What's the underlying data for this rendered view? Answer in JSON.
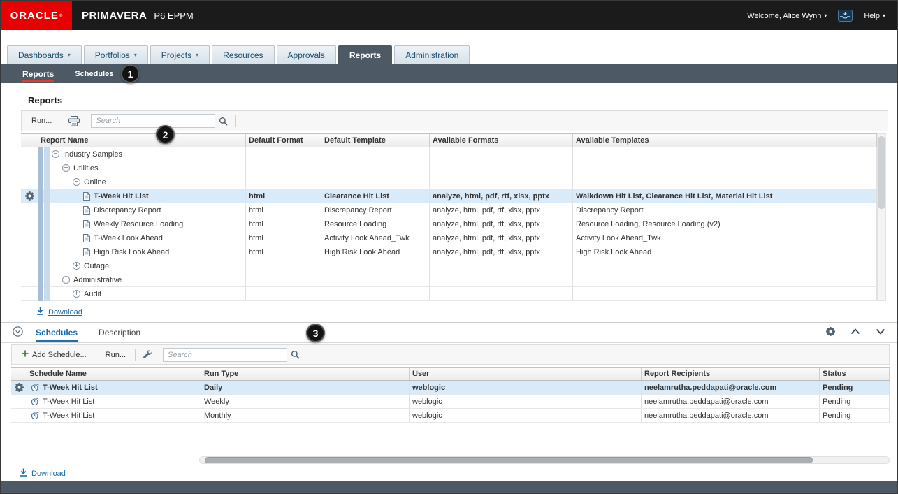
{
  "header": {
    "logo": "ORACLE",
    "logo_mark": "®",
    "brand": "PRIMAVERA",
    "product": "P6 EPPM",
    "welcome": "Welcome, Alice Wynn",
    "help": "Help"
  },
  "nav": {
    "tabs": [
      {
        "label": "Dashboards",
        "dropdown": true,
        "active": false
      },
      {
        "label": "Portfolios",
        "dropdown": true,
        "active": false
      },
      {
        "label": "Projects",
        "dropdown": true,
        "active": false
      },
      {
        "label": "Resources",
        "dropdown": false,
        "active": false
      },
      {
        "label": "Approvals",
        "dropdown": false,
        "active": false
      },
      {
        "label": "Reports",
        "dropdown": false,
        "active": true
      },
      {
        "label": "Administration",
        "dropdown": false,
        "active": false
      }
    ],
    "subnav": [
      {
        "label": "Reports",
        "active": true
      },
      {
        "label": "Schedules",
        "active": false
      }
    ]
  },
  "reports": {
    "title": "Reports",
    "toolbar": {
      "run": "Run...",
      "search_placeholder": "Search"
    },
    "columns": [
      "Report Name",
      "Default Format",
      "Default Template",
      "Available Formats",
      "Available Templates"
    ],
    "rows": [
      {
        "type": "group",
        "indent": 0,
        "expanded": true,
        "name": "Industry Samples"
      },
      {
        "type": "group",
        "indent": 1,
        "expanded": true,
        "name": "Utilities"
      },
      {
        "type": "group",
        "indent": 2,
        "expanded": true,
        "name": "Online"
      },
      {
        "type": "report",
        "indent": 3,
        "selected": true,
        "name": "T-Week Hit List",
        "default_format": "html",
        "default_template": "Clearance Hit List",
        "available_formats": "analyze, html, pdf, rtf, xlsx, pptx",
        "available_templates": "Walkdown Hit List, Clearance Hit List, Material Hit List"
      },
      {
        "type": "report",
        "indent": 3,
        "name": "Discrepancy Report",
        "default_format": "html",
        "default_template": "Discrepancy Report",
        "available_formats": "analyze, html, pdf, rtf, xlsx, pptx",
        "available_templates": "Discrepancy Report"
      },
      {
        "type": "report",
        "indent": 3,
        "name": "Weekly Resource Loading",
        "default_format": "html",
        "default_template": "Resource Loading",
        "available_formats": "analyze, html, pdf, rtf, xlsx, pptx",
        "available_templates": "Resource Loading, Resource Loading (v2)"
      },
      {
        "type": "report",
        "indent": 3,
        "name": "T-Week Look Ahead",
        "default_format": "html",
        "default_template": "Activity Look Ahead_Twk",
        "available_formats": "analyze, html, pdf, rtf, xlsx, pptx",
        "available_templates": "Activity Look Ahead_Twk"
      },
      {
        "type": "report",
        "indent": 3,
        "name": "High Risk Look Ahead",
        "default_format": "html",
        "default_template": "High Risk Look Ahead",
        "available_formats": "analyze, html, pdf, rtf, xlsx, pptx",
        "available_templates": "High Risk Look Ahead"
      },
      {
        "type": "group",
        "indent": 2,
        "expanded": false,
        "name": "Outage"
      },
      {
        "type": "group",
        "indent": 1,
        "expanded": true,
        "name": "Administrative"
      },
      {
        "type": "group",
        "indent": 2,
        "expanded": false,
        "name": "Audit"
      }
    ],
    "download": "Download"
  },
  "schedules": {
    "tabs": [
      {
        "label": "Schedules",
        "active": true
      },
      {
        "label": "Description",
        "active": false
      }
    ],
    "toolbar": {
      "add": "Add Schedule...",
      "run": "Run...",
      "search_placeholder": "Search"
    },
    "columns": [
      "Schedule Name",
      "Run Type",
      "User",
      "Report Recipients",
      "Status"
    ],
    "rows": [
      {
        "selected": true,
        "name": "T-Week Hit List",
        "run_type": "Daily",
        "user": "weblogic",
        "recipients": "neelamrutha.peddapati@oracle.com",
        "status": "Pending"
      },
      {
        "name": "T-Week Hit List",
        "run_type": "Weekly",
        "user": "weblogic",
        "recipients": "neelamrutha.peddapati@oracle.com",
        "status": "Pending"
      },
      {
        "name": "T-Week Hit List",
        "run_type": "Monthly",
        "user": "weblogic",
        "recipients": "neelamrutha.peddapati@oracle.com",
        "status": "Pending"
      }
    ],
    "download": "Download"
  },
  "annotations": [
    "1",
    "2",
    "3"
  ],
  "icons": {
    "notifications": "inbox-tray",
    "print": "printer",
    "search": "magnifier",
    "settings": "gear",
    "tools": "wrench",
    "add": "green-plus",
    "download": "arrow-down-to-bar",
    "collapse_panel": "circle-chevron-down",
    "panel_up": "chevron-up",
    "panel_down": "chevron-down",
    "expanded_node": "circle-minus",
    "collapsed_node": "circle-plus",
    "report": "document",
    "schedule": "clock-recurring"
  },
  "colors": {
    "oracle_red": "#e60000",
    "active_underline_red": "#e03b2f",
    "topbar": "#1b1b1b",
    "nav_dark": "#4d5a66",
    "selected_row": "#d9eaf8",
    "link_blue": "#1b6aa8"
  }
}
